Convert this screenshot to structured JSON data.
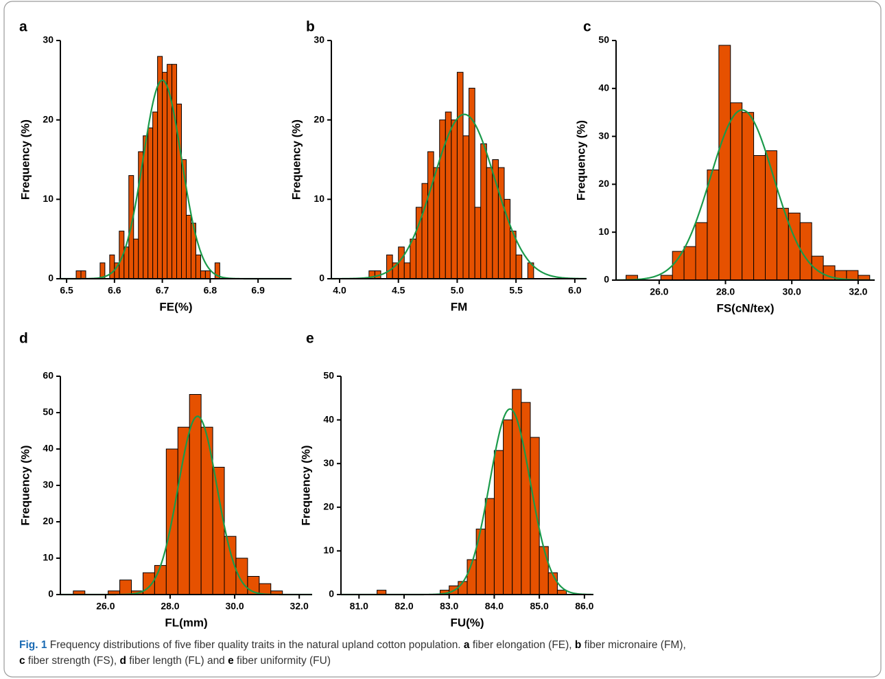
{
  "chart_data": [
    {
      "type": "histogram",
      "label": "a",
      "xlabel": "FE(%)",
      "ylabel": "Frequency (%)",
      "color": "#e65100",
      "bins": [
        6.52,
        6.53,
        6.54,
        6.55,
        6.56,
        6.57,
        6.58,
        6.59,
        6.6,
        6.61,
        6.62,
        6.63,
        6.64,
        6.65,
        6.66,
        6.67,
        6.68,
        6.69,
        6.7,
        6.71,
        6.72,
        6.73,
        6.74,
        6.75,
        6.76,
        6.77,
        6.78,
        6.79,
        6.8,
        6.81,
        6.82
      ],
      "values": [
        1,
        1,
        0,
        0,
        0,
        2,
        0,
        3,
        2,
        6,
        4,
        13,
        5,
        16,
        18,
        19,
        21,
        28,
        26,
        27,
        27,
        22,
        15,
        8,
        7,
        3,
        1,
        1,
        0,
        2
      ],
      "fit": {
        "mean": 6.7,
        "sd": 0.04,
        "peak": 25,
        "color": "#1a9a4a"
      },
      "xlim": [
        6.487,
        6.97
      ],
      "xticks": [
        6.5,
        6.6,
        6.7,
        6.8,
        6.9
      ],
      "ylim": [
        0,
        30
      ],
      "yticks": [
        0,
        10,
        20,
        30
      ]
    },
    {
      "type": "histogram",
      "label": "b",
      "xlabel": "FM",
      "ylabel": "Frequency (%)",
      "color": "#e65100",
      "bins": [
        4.25,
        4.3,
        4.35,
        4.4,
        4.45,
        4.5,
        4.55,
        4.6,
        4.65,
        4.7,
        4.75,
        4.8,
        4.85,
        4.9,
        4.95,
        5.0,
        5.05,
        5.1,
        5.15,
        5.2,
        5.25,
        5.3,
        5.35,
        5.4,
        5.45,
        5.5,
        5.55,
        5.6,
        5.65
      ],
      "values": [
        1,
        1,
        0,
        3,
        2,
        4,
        2,
        5,
        9,
        12,
        16,
        14,
        20,
        21,
        20,
        26,
        18,
        24,
        9,
        17,
        14,
        15,
        14,
        10,
        6,
        3,
        0,
        2
      ],
      "fit": {
        "mean": 5.06,
        "sd": 0.26,
        "peak": 20.7,
        "color": "#1a9a4a"
      },
      "xlim": [
        3.93,
        6.1
      ],
      "xticks": [
        {
          "value": 4,
          "label": "4.0"
        },
        4.5,
        {
          "value": 5,
          "label": "5.0"
        },
        5.5,
        {
          "value": 6,
          "label": "6.0"
        }
      ],
      "ylim": [
        0,
        30
      ],
      "yticks": [
        0,
        10,
        20,
        30
      ]
    },
    {
      "type": "histogram",
      "label": "c",
      "xlabel": "FS(cN/tex)",
      "ylabel": "Frequency (%)",
      "color": "#e65100",
      "bins": [
        25.0,
        25.35,
        25.7,
        26.05,
        26.4,
        26.75,
        27.1,
        27.45,
        27.8,
        28.15,
        28.5,
        28.85,
        29.2,
        29.55,
        29.9,
        30.25,
        30.6,
        30.95,
        31.3,
        31.65,
        32.0,
        32.35
      ],
      "values": [
        1,
        0,
        0,
        1,
        6,
        7,
        12,
        23,
        49,
        37,
        35,
        26,
        27,
        15,
        14,
        12,
        5,
        3,
        2,
        2,
        1
      ],
      "fit": {
        "mean": 28.5,
        "sd": 0.95,
        "peak": 35.5,
        "color": "#1a9a4a"
      },
      "xlim": [
        24.7,
        32.5
      ],
      "xticks": [
        {
          "value": 26,
          "label": "26.0"
        },
        {
          "value": 28,
          "label": "28.0"
        },
        {
          "value": 30,
          "label": "30.0"
        },
        {
          "value": 32,
          "label": "32.0"
        }
      ],
      "ylim": [
        0,
        50
      ],
      "yticks": [
        0,
        10,
        20,
        30,
        40,
        50
      ]
    },
    {
      "type": "histogram",
      "label": "d",
      "xlabel": "FL(mm)",
      "ylabel": "Frequency (%)",
      "color": "#e65100",
      "bins": [
        25.0,
        25.36,
        25.72,
        26.08,
        26.44,
        26.8,
        27.16,
        27.52,
        27.88,
        28.24,
        28.6,
        28.96,
        29.32,
        29.68,
        30.04,
        30.4,
        30.76,
        31.12,
        31.48
      ],
      "values": [
        1,
        0,
        0,
        1,
        4,
        1,
        6,
        8,
        40,
        46,
        55,
        46,
        35,
        16,
        10,
        5,
        3,
        1
      ],
      "fit": {
        "mean": 28.85,
        "sd": 0.6,
        "peak": 49,
        "color": "#1a9a4a"
      },
      "xlim": [
        24.6,
        32.4
      ],
      "xticks": [
        {
          "value": 26,
          "label": "26.0"
        },
        {
          "value": 28,
          "label": "28.0"
        },
        {
          "value": 30,
          "label": "30.0"
        },
        {
          "value": 32,
          "label": "32.0"
        }
      ],
      "ylim": [
        0,
        60
      ],
      "yticks": [
        0,
        10,
        20,
        30,
        40,
        50,
        60
      ]
    },
    {
      "type": "histogram",
      "label": "e",
      "xlabel": "FU(%)",
      "ylabel": "Frequency (%)",
      "color": "#e65100",
      "bins": [
        81.4,
        81.6,
        81.8,
        82.0,
        82.2,
        82.4,
        82.6,
        82.8,
        83.0,
        83.2,
        83.4,
        83.6,
        83.8,
        84.0,
        84.2,
        84.4,
        84.6,
        84.8,
        85.0,
        85.2,
        85.4,
        85.6
      ],
      "values": [
        1,
        0,
        0,
        0,
        0,
        0,
        0,
        1,
        2,
        3,
        8,
        15,
        22,
        33,
        40,
        47,
        44,
        36,
        11,
        5,
        1
      ],
      "fit": {
        "mean": 84.35,
        "sd": 0.45,
        "peak": 42.5,
        "color": "#1a9a4a"
      },
      "xlim": [
        80.6,
        86.2
      ],
      "xticks": [
        {
          "value": 81,
          "label": "81.0"
        },
        {
          "value": 82,
          "label": "82.0"
        },
        {
          "value": 83,
          "label": "83.0"
        },
        {
          "value": 84,
          "label": "84.0"
        },
        {
          "value": 85,
          "label": "85.0"
        },
        {
          "value": 86,
          "label": "86.0"
        }
      ],
      "ylim": [
        0,
        50
      ],
      "yticks": [
        0,
        10,
        20,
        30,
        40,
        50
      ]
    }
  ],
  "caption": {
    "lines": [
      [
        {
          "text": "Fig. 1",
          "bold": true
        },
        {
          "text": " Frequency distributions of five fiber quality traits in the natural upland cotton population. "
        },
        {
          "text": "a",
          "bold": true
        },
        {
          "text": " fiber elongation (FE), "
        },
        {
          "text": "b",
          "bold": true
        },
        {
          "text": " fiber micronaire (FM),"
        }
      ],
      [
        {
          "text": "c",
          "bold": true
        },
        {
          "text": " fiber strength (FS), "
        },
        {
          "text": "d",
          "bold": true
        },
        {
          "text": " fiber length (FL) and "
        },
        {
          "text": "e",
          "bold": true
        },
        {
          "text": " fiber uniformity (FU)"
        }
      ]
    ]
  }
}
